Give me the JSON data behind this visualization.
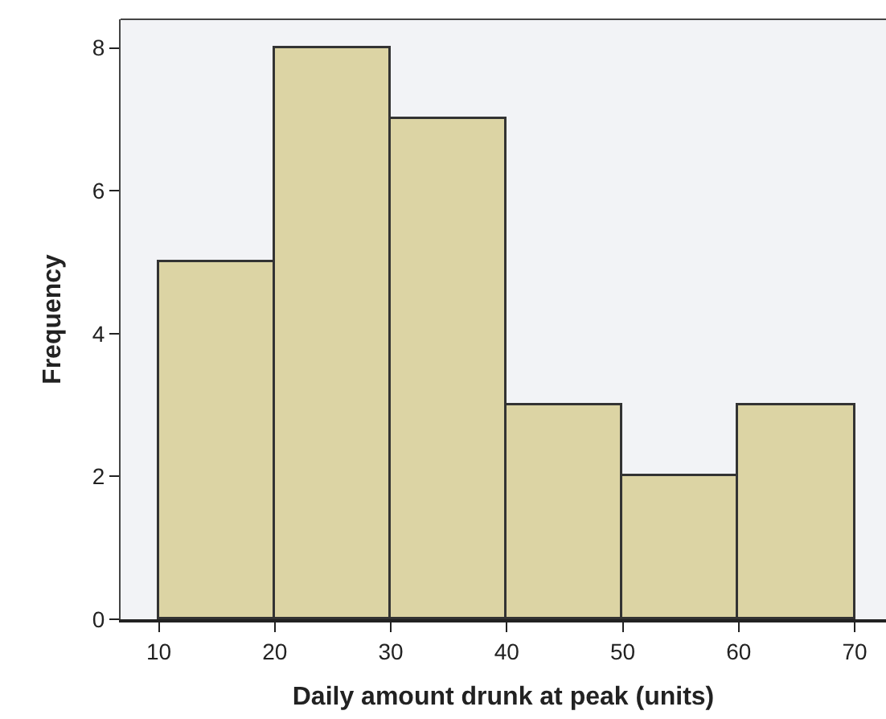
{
  "chart_data": {
    "type": "histogram",
    "xlabel": "Daily amount drunk at peak (units)",
    "ylabel": "Frequency",
    "bins": [
      10,
      20,
      30,
      40,
      50,
      60,
      70
    ],
    "values": [
      5,
      8,
      7,
      3,
      2,
      3
    ],
    "color": "#dcd4a4",
    "xlim": [
      6.7,
      72.7
    ],
    "xticks": [
      10,
      20,
      30,
      40,
      50,
      60,
      70
    ],
    "ylim": [
      0,
      8.4
    ],
    "yticks": [
      0,
      2,
      4,
      6,
      8
    ],
    "grid": false
  }
}
